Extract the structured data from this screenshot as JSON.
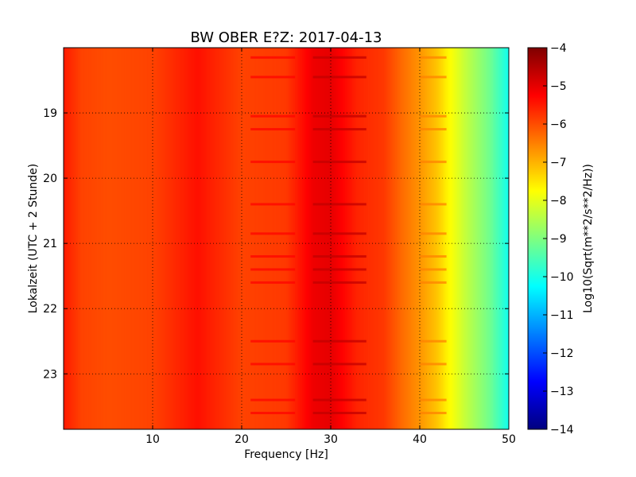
{
  "chart_data": {
    "type": "heatmap",
    "title": "BW OBER E?Z: 2017-04-13",
    "xlabel": "Frequency [Hz]",
    "ylabel": "Lokalzeit (UTC + 2 Stunde)",
    "xlim": [
      0,
      50
    ],
    "ylim_hours_top_to_bottom": [
      18.0,
      23.85
    ],
    "x_ticks": [
      10,
      20,
      30,
      40,
      50
    ],
    "y_ticks": [
      19,
      20,
      21,
      22,
      23
    ],
    "grid": true,
    "grid_style": "dotted",
    "colormap": "jet",
    "colorbar": {
      "label": "Log10(Sqrt(m**2/s**2/Hz))",
      "range": [
        -14,
        -4
      ],
      "ticks": [
        -4,
        -5,
        -6,
        -7,
        -8,
        -9,
        -10,
        -11,
        -12,
        -13,
        -14
      ]
    },
    "spectrum_profile_by_frequency": {
      "frequency_hz": [
        0,
        2,
        5,
        10,
        15,
        20,
        25,
        28,
        30,
        33,
        36,
        38,
        40,
        42,
        43,
        45,
        48,
        50
      ],
      "log10_value": [
        -5.5,
        -5.9,
        -6.0,
        -5.9,
        -5.4,
        -5.9,
        -5.8,
        -5.1,
        -5.0,
        -5.6,
        -5.8,
        -6.3,
        -6.7,
        -7.2,
        -7.6,
        -8.3,
        -9.2,
        -10.1
      ]
    },
    "transient_events_hours": [
      18.15,
      18.45,
      19.05,
      19.25,
      19.75,
      20.4,
      20.85,
      21.2,
      21.4,
      21.6,
      22.5,
      22.85,
      23.4,
      23.6
    ]
  }
}
